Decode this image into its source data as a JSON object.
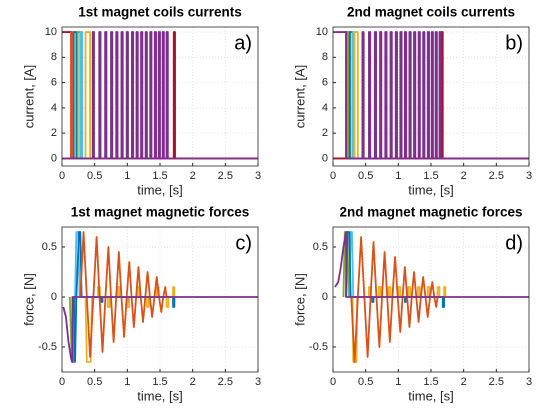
{
  "chart_data": [
    {
      "type": "line",
      "title": "1st magnet coils currents",
      "xlabel": "time, [s]",
      "ylabel": "current, [A]",
      "annotation": "a)",
      "xlim": [
        0,
        3
      ],
      "xticks": [
        0,
        0.5,
        1,
        1.5,
        2,
        2.5,
        3
      ],
      "ylim": [
        -0.6,
        10.4
      ],
      "yticks": [
        0,
        2,
        4,
        6,
        8,
        10
      ],
      "grid": true,
      "series": [
        {
          "color": "#A2142F",
          "x": [
            0,
            0.14,
            0.14,
            1.71,
            1.71,
            1.73,
            1.73,
            3
          ],
          "values": [
            10,
            10,
            0,
            0,
            10,
            10,
            0,
            0
          ]
        },
        {
          "color": "#0072BD",
          "x": [
            0,
            0.18,
            0.18,
            0.22,
            0.22,
            3
          ],
          "values": [
            0,
            0,
            10,
            10,
            0,
            0
          ]
        },
        {
          "color": "#77AC30",
          "x": [
            0,
            0.24,
            0.24,
            0.28,
            0.28,
            3
          ],
          "values": [
            0,
            0,
            10,
            10,
            0,
            0
          ]
        },
        {
          "color": "#4DBEEE",
          "x": [
            0,
            0.29,
            0.29,
            0.31,
            0.31,
            3
          ],
          "values": [
            0,
            0,
            10,
            10,
            0,
            0
          ]
        },
        {
          "color": "#EDB120",
          "x": [
            0,
            0.36,
            0.36,
            0.43,
            0.43,
            3
          ],
          "values": [
            0,
            0,
            10,
            10,
            0,
            0
          ]
        },
        {
          "color": "#D95319",
          "x": [
            0,
            0.14,
            0.14,
            0.16,
            0.16,
            3
          ],
          "values": [
            0,
            0,
            10,
            10,
            0,
            0
          ]
        },
        {
          "color": "#7E2F8E",
          "x": [
            0,
            0.47,
            0.47,
            0.49,
            0.49,
            0.57,
            0.57,
            0.59,
            0.59,
            0.66,
            0.66,
            0.68,
            0.68,
            0.75,
            0.75,
            0.77,
            0.77,
            0.83,
            0.83,
            0.85,
            0.85,
            0.91,
            0.91,
            0.93,
            0.93,
            0.99,
            0.99,
            1.01,
            1.01,
            1.07,
            1.07,
            1.09,
            1.09,
            1.14,
            1.14,
            1.16,
            1.16,
            1.21,
            1.21,
            1.23,
            1.23,
            1.28,
            1.28,
            1.3,
            1.3,
            1.35,
            1.35,
            1.37,
            1.37,
            1.42,
            1.42,
            1.44,
            1.44,
            1.48,
            1.48,
            1.5,
            1.5,
            1.54,
            1.54,
            1.56,
            1.56,
            1.6,
            1.6,
            1.62,
            1.62,
            3
          ],
          "values": [
            0,
            0,
            10,
            10,
            0,
            0,
            10,
            10,
            0,
            0,
            10,
            10,
            0,
            0,
            10,
            10,
            0,
            0,
            10,
            10,
            0,
            0,
            10,
            10,
            0,
            0,
            10,
            10,
            0,
            0,
            10,
            10,
            0,
            0,
            10,
            10,
            0,
            0,
            10,
            10,
            0,
            0,
            10,
            10,
            0,
            0,
            10,
            10,
            0,
            0,
            10,
            10,
            0,
            0,
            10,
            10,
            0,
            0,
            10,
            10,
            0,
            0,
            10,
            10,
            0,
            0
          ]
        }
      ]
    },
    {
      "type": "line",
      "title": "2nd magnet coils currents",
      "xlabel": "time, [s]",
      "ylabel": "current, [A]",
      "annotation": "b)",
      "xlim": [
        0,
        3
      ],
      "xticks": [
        0,
        0.5,
        1,
        1.5,
        2,
        2.5,
        3
      ],
      "ylim": [
        -0.6,
        10.4
      ],
      "yticks": [
        0,
        2,
        4,
        6,
        8,
        10
      ],
      "grid": true,
      "series": [
        {
          "color": "#D95319",
          "x": [
            0,
            0.2,
            0.2,
            0.24,
            0.24,
            3
          ],
          "values": [
            0,
            0,
            10,
            10,
            0,
            0
          ]
        },
        {
          "color": "#77AC30",
          "x": [
            0,
            0.22,
            0.22,
            0.25,
            0.25,
            3
          ],
          "values": [
            0,
            0,
            10,
            10,
            0,
            0
          ]
        },
        {
          "color": "#0072BD",
          "x": [
            0,
            0.26,
            0.26,
            0.3,
            0.3,
            3
          ],
          "values": [
            0,
            0,
            10,
            10,
            0,
            0
          ]
        },
        {
          "color": "#4DBEEE",
          "x": [
            0,
            0.3,
            0.3,
            0.32,
            0.32,
            3
          ],
          "values": [
            0,
            0,
            10,
            10,
            0,
            0
          ]
        },
        {
          "color": "#EDB120",
          "x": [
            0,
            0.33,
            0.33,
            0.38,
            0.38,
            3
          ],
          "values": [
            0,
            0,
            10,
            10,
            0,
            0
          ]
        },
        {
          "color": "#A2142F",
          "x": [
            0,
            1.66,
            1.66,
            1.68,
            1.68,
            3
          ],
          "values": [
            0,
            0,
            10,
            10,
            0,
            0
          ]
        },
        {
          "color": "#7E2F8E",
          "x": [
            0,
            0.2,
            0.2,
            0.45,
            0.45,
            0.47,
            0.47,
            0.55,
            0.55,
            0.57,
            0.57,
            0.64,
            0.64,
            0.66,
            0.66,
            0.72,
            0.72,
            0.74,
            0.74,
            0.8,
            0.8,
            0.82,
            0.82,
            0.88,
            0.88,
            0.9,
            0.9,
            0.96,
            0.96,
            0.98,
            0.98,
            1.03,
            1.03,
            1.05,
            1.05,
            1.1,
            1.1,
            1.12,
            1.12,
            1.17,
            1.17,
            1.19,
            1.19,
            1.24,
            1.24,
            1.26,
            1.26,
            1.31,
            1.31,
            1.33,
            1.33,
            1.38,
            1.38,
            1.4,
            1.4,
            1.45,
            1.45,
            1.47,
            1.47,
            1.51,
            1.51,
            1.53,
            1.53,
            1.57,
            1.57,
            1.59,
            1.59,
            1.63,
            1.63,
            1.65,
            1.65,
            3
          ],
          "values": [
            10,
            10,
            0,
            0,
            10,
            10,
            0,
            0,
            10,
            10,
            0,
            0,
            10,
            10,
            0,
            0,
            10,
            10,
            0,
            0,
            10,
            10,
            0,
            0,
            10,
            10,
            0,
            0,
            10,
            10,
            0,
            0,
            10,
            10,
            0,
            0,
            10,
            10,
            0,
            0,
            10,
            10,
            0,
            0,
            10,
            10,
            0,
            0,
            10,
            10,
            0,
            0,
            10,
            10,
            0,
            0,
            10,
            10,
            0,
            0,
            10,
            10,
            0,
            0,
            10,
            10,
            0,
            0,
            10,
            10,
            0,
            0
          ]
        }
      ]
    },
    {
      "type": "line",
      "title": "1st magnet magnetic forces",
      "xlabel": "time, [s]",
      "ylabel": "force, [N]",
      "annotation": "c)",
      "xlim": [
        0,
        3
      ],
      "xticks": [
        0,
        0.5,
        1,
        1.5,
        2,
        2.5,
        3
      ],
      "ylim": [
        -0.75,
        0.7
      ],
      "yticks": [
        -0.5,
        0,
        0.5
      ],
      "grid": true,
      "series": [
        {
          "color": "#77AC30",
          "x": [
            0.12,
            0.15,
            0.18,
            0.2
          ],
          "values": [
            0,
            -0.65,
            -0.65,
            0
          ]
        },
        {
          "color": "#4DBEEE",
          "x": [
            0.2,
            0.22,
            0.25,
            0.27
          ],
          "values": [
            0,
            0.65,
            0.65,
            0
          ]
        },
        {
          "color": "#0072BD",
          "x": [
            0.18,
            0.2,
            0.22,
            0.26,
            0.28,
            0.3,
            0.6,
            0.6,
            0.62,
            0.62,
            1.0,
            1.0,
            1.02,
            1.02,
            1.7,
            1.7,
            1.72,
            1.72
          ],
          "values": [
            0,
            -0.65,
            0,
            0.65,
            0.65,
            0,
            0,
            -0.05,
            -0.05,
            0,
            0,
            -0.05,
            -0.05,
            0,
            0,
            -0.1,
            -0.1,
            0
          ]
        },
        {
          "color": "#EDB120",
          "x": [
            0.36,
            0.38,
            0.44,
            0.46,
            0.55,
            0.55,
            0.58,
            0.58,
            0.7,
            0.7,
            0.73,
            0.73,
            0.85,
            0.85,
            0.88,
            0.88,
            1.0,
            1.0,
            1.03,
            1.03,
            1.15,
            1.15,
            1.18,
            1.18,
            1.3,
            1.3,
            1.33,
            1.33,
            1.45,
            1.45,
            1.48,
            1.48,
            1.6,
            1.6,
            1.63,
            1.63,
            1.7,
            1.7,
            1.72,
            1.72
          ],
          "values": [
            0,
            -0.65,
            -0.65,
            0,
            0,
            0.1,
            0.1,
            0,
            0,
            -0.1,
            -0.1,
            0,
            0,
            0.1,
            0.1,
            0,
            0,
            -0.1,
            -0.1,
            0,
            0,
            0.1,
            0.1,
            0,
            0,
            -0.1,
            -0.1,
            0,
            0,
            0.1,
            0.1,
            0,
            0,
            -0.1,
            -0.1,
            0,
            0,
            0.1,
            0.1,
            0
          ]
        },
        {
          "color": "#D95319",
          "x": [
            0.28,
            0.33,
            0.38,
            0.43,
            0.48,
            0.53,
            0.575,
            0.62,
            0.665,
            0.71,
            0.75,
            0.79,
            0.83,
            0.87,
            0.91,
            0.95,
            0.99,
            1.03,
            1.065,
            1.1,
            1.135,
            1.17,
            1.205,
            1.24,
            1.275,
            1.31,
            1.345,
            1.38,
            1.415,
            1.45,
            1.485,
            1.52,
            1.55,
            1.58,
            1.6
          ],
          "values": [
            0,
            0.65,
            0,
            -0.6,
            0,
            0.6,
            0,
            -0.55,
            0,
            0.5,
            0,
            -0.45,
            0,
            0.45,
            0,
            -0.4,
            0,
            0.35,
            0,
            -0.3,
            0,
            0.3,
            0,
            -0.25,
            0,
            0.25,
            0,
            -0.2,
            0,
            0.2,
            0,
            -0.15,
            0,
            0.1,
            0
          ]
        },
        {
          "color": "#7E2F8E",
          "x": [
            0.02,
            0.06,
            0.1,
            0.14,
            0.16,
            0.16,
            3
          ],
          "values": [
            -0.1,
            -0.2,
            -0.45,
            -0.62,
            -0.65,
            0,
            0
          ]
        }
      ]
    },
    {
      "type": "line",
      "title": "2nd magnet magnetic forces",
      "xlabel": "time, [s]",
      "ylabel": "force, [N]",
      "annotation": "d)",
      "xlim": [
        0,
        3
      ],
      "xticks": [
        0,
        0.5,
        1,
        1.5,
        2,
        2.5,
        3
      ],
      "ylim": [
        -0.75,
        0.7
      ],
      "yticks": [
        -0.5,
        0,
        0.5
      ],
      "grid": true,
      "series": [
        {
          "color": "#77AC30",
          "x": [
            0.16,
            0.18,
            0.22,
            0.24
          ],
          "values": [
            0,
            0.65,
            0.65,
            0
          ]
        },
        {
          "color": "#4DBEEE",
          "x": [
            0.25,
            0.27,
            0.29,
            0.31
          ],
          "values": [
            0,
            0.65,
            0.65,
            0
          ]
        },
        {
          "color": "#0072BD",
          "x": [
            0.2,
            0.22,
            0.25,
            0.27,
            0.6,
            0.6,
            0.62,
            0.62,
            1.1,
            1.1,
            1.12,
            1.12,
            1.68,
            1.68,
            1.7,
            1.7
          ],
          "values": [
            0,
            0.65,
            0.65,
            0,
            0,
            -0.05,
            -0.05,
            0,
            0,
            -0.05,
            -0.05,
            0,
            0,
            -0.1,
            -0.1,
            0
          ]
        },
        {
          "color": "#EDB120",
          "x": [
            0.3,
            0.31,
            0.36,
            0.37,
            0.55,
            0.55,
            0.58,
            0.58,
            0.7,
            0.7,
            0.73,
            0.73,
            0.85,
            0.85,
            0.88,
            0.88,
            1.0,
            1.0,
            1.03,
            1.03,
            1.15,
            1.15,
            1.18,
            1.18,
            1.3,
            1.3,
            1.33,
            1.33,
            1.45,
            1.45,
            1.48,
            1.48,
            1.6,
            1.6,
            1.63,
            1.63,
            1.7,
            1.7,
            1.72,
            1.72
          ],
          "values": [
            0,
            -0.65,
            -0.65,
            0,
            0,
            0.1,
            0.1,
            0,
            0,
            0.1,
            0.1,
            0,
            0,
            0.1,
            0.1,
            0,
            0,
            0.1,
            0.1,
            0,
            0,
            0.1,
            0.1,
            0,
            0,
            0.1,
            0.1,
            0,
            0,
            0.1,
            0.1,
            0,
            0,
            0.1,
            0.1,
            0,
            0,
            0.1,
            0.1,
            0
          ]
        },
        {
          "color": "#D95319",
          "x": [
            0.28,
            0.33,
            0.38,
            0.43,
            0.48,
            0.53,
            0.575,
            0.62,
            0.665,
            0.71,
            0.75,
            0.79,
            0.83,
            0.87,
            0.91,
            0.95,
            0.99,
            1.03,
            1.065,
            1.1,
            1.135,
            1.17,
            1.205,
            1.24,
            1.275,
            1.31,
            1.345,
            1.38,
            1.415,
            1.45,
            1.485,
            1.52,
            1.55,
            1.58,
            1.6
          ],
          "values": [
            0,
            -0.65,
            0,
            0.6,
            0,
            -0.6,
            0,
            0.55,
            0,
            -0.5,
            0,
            0.45,
            0,
            -0.45,
            0,
            0.4,
            0,
            -0.35,
            0,
            0.3,
            0,
            -0.3,
            0,
            0.25,
            0,
            -0.25,
            0,
            0.2,
            0,
            -0.2,
            0,
            0.15,
            0,
            -0.1,
            0
          ]
        },
        {
          "color": "#7E2F8E",
          "x": [
            0.03,
            0.08,
            0.12,
            0.16,
            0.2,
            0.2,
            3
          ],
          "values": [
            0.1,
            0.15,
            0.3,
            0.5,
            0.65,
            0,
            0
          ]
        }
      ]
    }
  ]
}
